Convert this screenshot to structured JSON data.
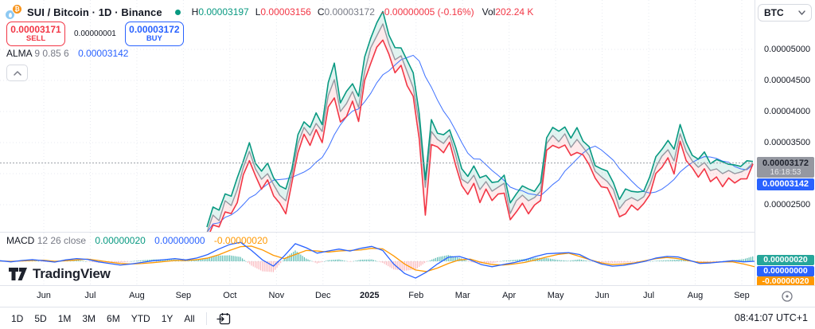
{
  "header": {
    "title": "SUI / Bitcoin · 1D · Binance",
    "ohlc": {
      "h_label": "H",
      "h_value": "0.00003197",
      "l_label": "L",
      "l_value": "0.00003156",
      "c_label": "C",
      "c_value": "0.00003172",
      "change": "-0.00000005 (-0.16%)",
      "vol_label": "Vol",
      "vol_value": "202.24 K"
    }
  },
  "order": {
    "sell_price": "0.00003171",
    "sell_label": "SELL",
    "spread": "0.00000001",
    "buy_price": "0.00003172",
    "buy_label": "BUY"
  },
  "alma": {
    "name": "ALMA",
    "params": "9 0.85 6",
    "value": "0.00003142"
  },
  "macd_legend": {
    "name": "MACD",
    "params": "12 26 close",
    "v1": "0.00000020",
    "v2": "0.00000000",
    "v3": "-0.00000020"
  },
  "price_scale": {
    "currency": "BTC",
    "last_price": "0.00003172",
    "countdown": "16:18:53",
    "alma_value": "0.00003142",
    "macd_labels": [
      {
        "text": "0.00000020",
        "color": "#26A69A"
      },
      {
        "text": "0.00000000",
        "color": "#2962FF"
      },
      {
        "text": "-0.00000020",
        "color": "#FF9800"
      }
    ]
  },
  "time_axis": {
    "months": [
      "Jun",
      "Jul",
      "Aug",
      "Sep",
      "Oct",
      "Nov",
      "Dec",
      "2025",
      "Feb",
      "Mar",
      "Apr",
      "May",
      "Jun",
      "Jul",
      "Aug",
      "Sep"
    ],
    "clock": "08:41:07 UTC+1"
  },
  "toolbar": {
    "ranges": [
      "1D",
      "5D",
      "1M",
      "3M",
      "6M",
      "YTD",
      "1Y",
      "All"
    ]
  },
  "logo": {
    "text": "TradingView"
  },
  "colors": {
    "up": "#089981",
    "down": "#F23645",
    "accent_blue": "#2962FF",
    "signal_orange": "#FF9800",
    "close_line": "#9598A1",
    "grid": "#E7EAF0",
    "border": "#E0E3EB",
    "text": "#131722",
    "hist_up": "rgba(38,166,154,0.75)",
    "hist_down": "rgba(242,54,69,0.35)",
    "band_up": "rgba(8,153,129,0.12)",
    "band_down": "rgba(242,54,69,0.10)"
  },
  "chart_data": {
    "type": "line",
    "subtype": "hlc-area with ALMA overlay and MACD pane",
    "symbol": "SUI / Bitcoin",
    "interval": "1D",
    "exchange": "Binance",
    "x_range": "Jun 2024 - Sep 2025",
    "price_unit": "1e-8 BTC",
    "y_ticks": [
      {
        "label": "0.00005000",
        "value": 5000
      },
      {
        "label": "0.00004500",
        "value": 4500
      },
      {
        "label": "0.00004000",
        "value": 4000
      },
      {
        "label": "0.00003500",
        "value": 3500
      },
      {
        "label": "0.00002500",
        "value": 2500
      }
    ],
    "last_bar": {
      "high": "0.00003197",
      "low": "0.00003156",
      "close": "0.00003172",
      "change": "-0.00000005",
      "change_pct": "-0.16%",
      "volume": "202.24 K"
    },
    "price": {
      "close": [
        2051,
        2333,
        2243,
        2564,
        2487,
        2744,
        3103,
        3359,
        3077,
        2910,
        3000,
        2821,
        2654,
        2564,
        2974,
        3487,
        3744,
        3615,
        3808,
        3679,
        4256,
        4513,
        4000,
        4128,
        4321,
        4064,
        4641,
        5026,
        5218,
        5410,
        5090,
        4833,
        4897,
        4641,
        4385,
        3808,
        2782,
        3679,
        3551,
        3487,
        3615,
        3295,
        2910,
        2846,
        2974,
        2744,
        2872,
        2718,
        2782,
        2846,
        2359,
        2564,
        2654,
        2564,
        2615,
        2718,
        3487,
        3615,
        3513,
        3641,
        3423,
        3551,
        3423,
        3295,
        3038,
        2949,
        2872,
        2744,
        2436,
        2564,
        2615,
        2564,
        2628,
        2821,
        3103,
        3282,
        3385,
        3205,
        3641,
        3359,
        3205,
        3103,
        3179,
        3051,
        3077,
        3000,
        3051,
        3000,
        3026,
        3077,
        3172
      ],
      "high": [
        2141,
        2463,
        2413,
        2674,
        2637,
        2934,
        3203,
        3499,
        3167,
        3040,
        3170,
        2931,
        2804,
        2754,
        3074,
        3627,
        3834,
        3745,
        3978,
        3789,
        4466,
        4779,
        4140,
        4324,
        4447,
        4246,
        4879,
        5180,
        5428,
        5610,
        5230,
        5029,
        5023,
        4823,
        4623,
        3962,
        2902,
        3869,
        3651,
        3627,
        3705,
        3425,
        3080,
        2956,
        3124,
        2934,
        2972,
        2858,
        2872,
        2976,
        2529,
        2674,
        2804,
        2754,
        2715,
        2858,
        3577,
        3745,
        3683,
        3751,
        3573,
        3741,
        3523,
        3435,
        3128,
        3079,
        3042,
        2854,
        2586,
        2754,
        2715,
        2704,
        2718,
        2951,
        3273,
        3392,
        3535,
        3395,
        3791,
        3499,
        3295,
        3233,
        3349,
        3161,
        3227,
        3190,
        3151,
        3140,
        3116,
        3207,
        3197
      ],
      "low": [
        1941,
        2173,
        2143,
        2384,
        2357,
        2534,
        2983,
        3209,
        2967,
        2750,
        2900,
        2641,
        2524,
        2354,
        2854,
        3337,
        3634,
        3455,
        3708,
        3499,
        4074,
        4219,
        3832,
        3918,
        4167,
        3840,
        4501,
        4774,
        5036,
        5150,
        4922,
        4623,
        4743,
        4417,
        4245,
        3556,
        2332,
        3469,
        3431,
        3337,
        3505,
        3135,
        2810,
        2666,
        2844,
        2534,
        2752,
        2568,
        2672,
        2686,
        2259,
        2384,
        2524,
        2354,
        2495,
        2568,
        3377,
        3455,
        3413,
        3461,
        3293,
        3341,
        3303,
        3145,
        2928,
        2789,
        2772,
        2564,
        2306,
        2354,
        2495,
        2414,
        2518,
        2661,
        3003,
        3102,
        3255,
        2995,
        3521,
        3209,
        3095,
        2943,
        3079,
        2871,
        2947,
        2790,
        2931,
        2850,
        2916,
        2917,
        3156
      ]
    },
    "alma_last": 3142,
    "macd": {
      "unit": "1e-8 BTC",
      "macd": [
        2,
        -2,
        3,
        6,
        2,
        -3,
        5,
        10,
        7,
        -2,
        -8,
        -14,
        -10,
        -4,
        2,
        6,
        10,
        5,
        12,
        25,
        45,
        62,
        70,
        40,
        5,
        -18,
        20,
        65,
        50,
        30,
        38,
        45,
        38,
        48,
        55,
        40,
        -10,
        -45,
        -62,
        -40,
        -10,
        15,
        18,
        5,
        -12,
        -20,
        -12,
        -5,
        5,
        18,
        28,
        30,
        32,
        25,
        5,
        -10,
        -18,
        -15,
        -8,
        0,
        12,
        18,
        16,
        4,
        -8,
        -6,
        -2,
        2,
        -2,
        0
      ],
      "signal": [
        1,
        0,
        1,
        3,
        4,
        0,
        2,
        5,
        8,
        3,
        -3,
        -8,
        -10,
        -8,
        -5,
        -1,
        3,
        3,
        6,
        12,
        24,
        40,
        54,
        56,
        42,
        22,
        10,
        25,
        40,
        38,
        34,
        38,
        40,
        42,
        48,
        46,
        20,
        -10,
        -32,
        -38,
        -25,
        -8,
        5,
        8,
        -4,
        -12,
        -14,
        -10,
        -4,
        5,
        16,
        25,
        30,
        18,
        5,
        -6,
        -12,
        -10,
        -6,
        2,
        10,
        14,
        10,
        2,
        -4,
        -4,
        -2,
        -2,
        -10,
        -20
      ]
    }
  }
}
